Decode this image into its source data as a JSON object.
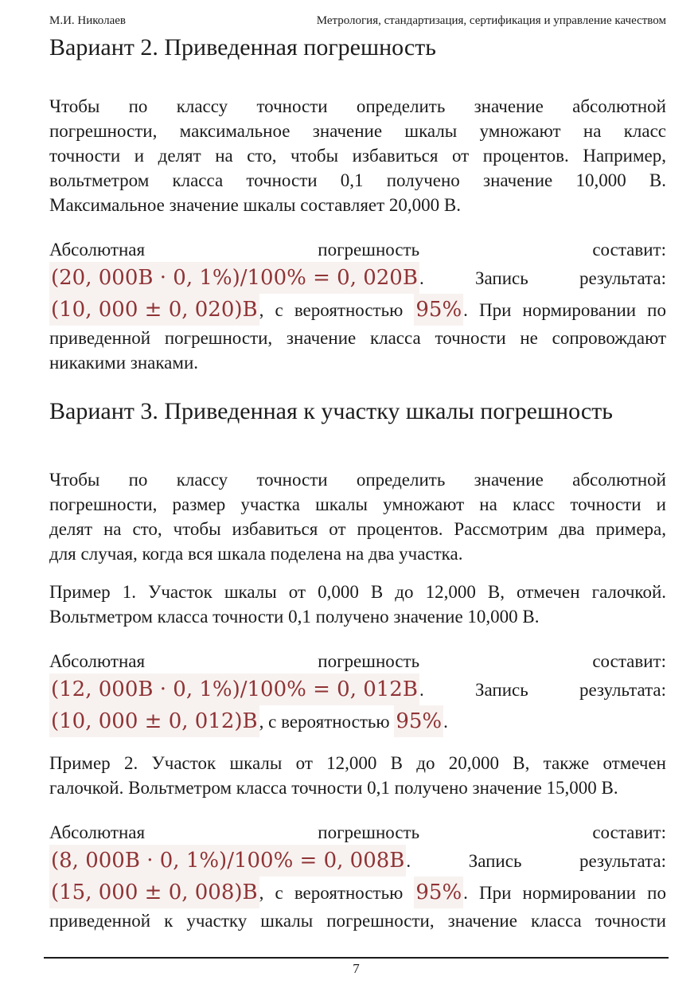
{
  "colors": {
    "text": "#1b1b1b",
    "formula": "#8f3335",
    "background": "#ffffff"
  },
  "page": {
    "header_left": "М.И. Николаев",
    "header_right": "Метрология, стандартизация, сертификация и управление качеством",
    "footer_page_number": "7"
  },
  "content": [
    {
      "type": "heading",
      "text": "Вариант 2. Приведенная погрешность"
    },
    {
      "type": "para",
      "lines": [
        {
          "justify": true,
          "segments": [
            {
              "style": "text",
              "t": "Чтобы по классу точности определить значение абсолютной"
            }
          ]
        },
        {
          "justify": true,
          "segments": [
            {
              "style": "text",
              "t": "погрешности, максимальное значение шкалы умножают на класс"
            }
          ]
        },
        {
          "justify": true,
          "segments": [
            {
              "style": "text",
              "t": "точности и делят на сто, чтобы избавиться от процентов. Например,"
            }
          ]
        },
        {
          "justify": true,
          "segments": [
            {
              "style": "text",
              "t": "вольтметром класса точности 0,1 получено значение 10,000 В."
            }
          ]
        },
        {
          "justify": false,
          "segments": [
            {
              "style": "text",
              "t": "Максимальное значение шкалы составляет 20,000 В."
            }
          ]
        }
      ]
    },
    {
      "type": "result",
      "lines": [
        {
          "justify": true,
          "segments": [
            {
              "style": "text",
              "t": "Абсолютная погрешность составит:"
            }
          ]
        },
        {
          "justify": true,
          "segments": [
            {
              "style": "formula",
              "t": "(20, 000В · 0, 1%)/100% = 0, 020В"
            },
            {
              "style": "text",
              "t": ". Запись результата:"
            }
          ]
        },
        {
          "justify": true,
          "segments": [
            {
              "style": "formula",
              "t": "(10, 000 ± 0, 020)В"
            },
            {
              "style": "text",
              "t": ", с вероятностью "
            },
            {
              "style": "formula",
              "t": "95%"
            },
            {
              "style": "text",
              "t": ". При нормировании по"
            }
          ]
        },
        {
          "justify": true,
          "segments": [
            {
              "style": "text",
              "t": "приведенной погрешности, значение класса точности не сопровождают"
            }
          ]
        },
        {
          "justify": false,
          "segments": [
            {
              "style": "text",
              "t": "никакими знаками."
            }
          ]
        }
      ]
    },
    {
      "type": "heading",
      "text": "Вариант 3. Приведенная к участку шкалы погрешность"
    },
    {
      "type": "para",
      "lines": [
        {
          "justify": true,
          "segments": [
            {
              "style": "text",
              "t": "Чтобы по классу точности определить значение абсолютной"
            }
          ]
        },
        {
          "justify": true,
          "segments": [
            {
              "style": "text",
              "t": "погрешности, размер участка шкалы умножают на класс точности и"
            }
          ]
        },
        {
          "justify": true,
          "segments": [
            {
              "style": "text",
              "t": "делят на сто, чтобы избавиться от процентов. Рассмотрим два примера,"
            }
          ]
        },
        {
          "justify": false,
          "segments": [
            {
              "style": "text",
              "t": "для случая, когда вся шкала поделена на два участка."
            }
          ]
        }
      ]
    },
    {
      "type": "para",
      "lines": [
        {
          "justify": true,
          "segments": [
            {
              "style": "text",
              "t": "Пример 1. Участок шкалы от 0,000 В до 12,000 В, отмечен галочкой."
            }
          ]
        },
        {
          "justify": false,
          "segments": [
            {
              "style": "text",
              "t": "Вольтметром класса точности 0,1 получено значение 10,000 В."
            }
          ]
        }
      ]
    },
    {
      "type": "result",
      "lines": [
        {
          "justify": true,
          "segments": [
            {
              "style": "text",
              "t": "Абсолютная погрешность составит:"
            }
          ]
        },
        {
          "justify": true,
          "segments": [
            {
              "style": "formula",
              "t": "(12, 000В · 0, 1%)/100% = 0, 012В"
            },
            {
              "style": "text",
              "t": ". Запись результата:"
            }
          ]
        },
        {
          "justify": false,
          "segments": [
            {
              "style": "formula",
              "t": "(10, 000 ± 0, 012)В"
            },
            {
              "style": "text",
              "t": ", с вероятностью "
            },
            {
              "style": "formula",
              "t": "95%"
            },
            {
              "style": "text",
              "t": "."
            }
          ]
        }
      ]
    },
    {
      "type": "para",
      "lines": [
        {
          "justify": true,
          "segments": [
            {
              "style": "text",
              "t": "Пример 2. Участок шкалы от 12,000 В до 20,000 В, также отмечен"
            }
          ]
        },
        {
          "justify": false,
          "segments": [
            {
              "style": "text",
              "t": "галочкой. Вольтметром класса точности 0,1 получено значение 15,000 В."
            }
          ]
        }
      ]
    },
    {
      "type": "result",
      "lines": [
        {
          "justify": true,
          "segments": [
            {
              "style": "text",
              "t": "Абсолютная погрешность составит:"
            }
          ]
        },
        {
          "justify": true,
          "segments": [
            {
              "style": "formula",
              "t": "(8, 000В · 0, 1%)/100% = 0, 008В"
            },
            {
              "style": "text",
              "t": ". Запись результата:"
            }
          ]
        },
        {
          "justify": true,
          "segments": [
            {
              "style": "formula",
              "t": "(15, 000 ± 0, 008)В"
            },
            {
              "style": "text",
              "t": ", с вероятностью "
            },
            {
              "style": "formula",
              "t": "95%"
            },
            {
              "style": "text",
              "t": ". При нормировании по"
            }
          ]
        },
        {
          "justify": true,
          "segments": [
            {
              "style": "text",
              "t": "приведенной к участку шкалы погрешности, значение класса точности"
            }
          ]
        }
      ]
    }
  ]
}
